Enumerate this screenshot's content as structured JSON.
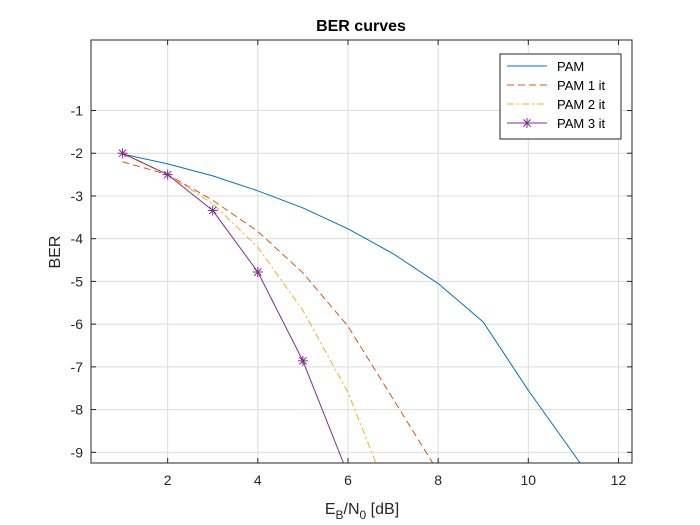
{
  "chart_data": {
    "type": "line",
    "title": "BER curves",
    "xlabel": {
      "base": "E",
      "sub1": "B",
      "mid": "/N",
      "sub2": "0",
      "tail": " [dB]"
    },
    "ylabel": "BER",
    "xlim": [
      0.3,
      12.3
    ],
    "ylim": [
      -9.25,
      0.65
    ],
    "x_ticks": [
      2,
      4,
      6,
      8,
      10,
      12
    ],
    "y_ticks": [
      -9,
      -8,
      -7,
      -6,
      -5,
      -4,
      -3,
      -2,
      -1
    ],
    "grid": true,
    "legend_position": "top-right",
    "series": [
      {
        "name": "PAM",
        "color": "#0072BD",
        "dash": "solid",
        "marker": "none",
        "x": [
          1,
          2,
          3,
          4,
          5,
          6,
          7,
          8,
          9,
          10,
          11.15
        ],
        "y": [
          -2.02,
          -2.25,
          -2.53,
          -2.88,
          -3.28,
          -3.77,
          -4.35,
          -5.05,
          -5.95,
          -7.55,
          -9.25
        ]
      },
      {
        "name": "PAM 1 it",
        "color": "#D95319",
        "dash": "dashed",
        "marker": "none",
        "x": [
          1,
          2,
          3,
          4,
          5,
          6,
          7,
          7.88
        ],
        "y": [
          -2.2,
          -2.5,
          -3.1,
          -3.83,
          -4.8,
          -6.05,
          -7.75,
          -9.25
        ]
      },
      {
        "name": "PAM 2 it",
        "color": "#EDB120",
        "dash": "dashdot",
        "marker": "none",
        "x": [
          1,
          2,
          3,
          4,
          5,
          6,
          6.62
        ],
        "y": [
          -2.02,
          -2.5,
          -3.18,
          -4.2,
          -5.68,
          -7.6,
          -9.25
        ]
      },
      {
        "name": "PAM 3 it",
        "color": "#7E2F8E",
        "dash": "solid",
        "marker": "asterisk",
        "marker_points": 5,
        "x": [
          1,
          2,
          3,
          4,
          5,
          5.9
        ],
        "y": [
          -2.0,
          -2.5,
          -3.34,
          -4.78,
          -6.86,
          -9.25
        ]
      }
    ]
  }
}
